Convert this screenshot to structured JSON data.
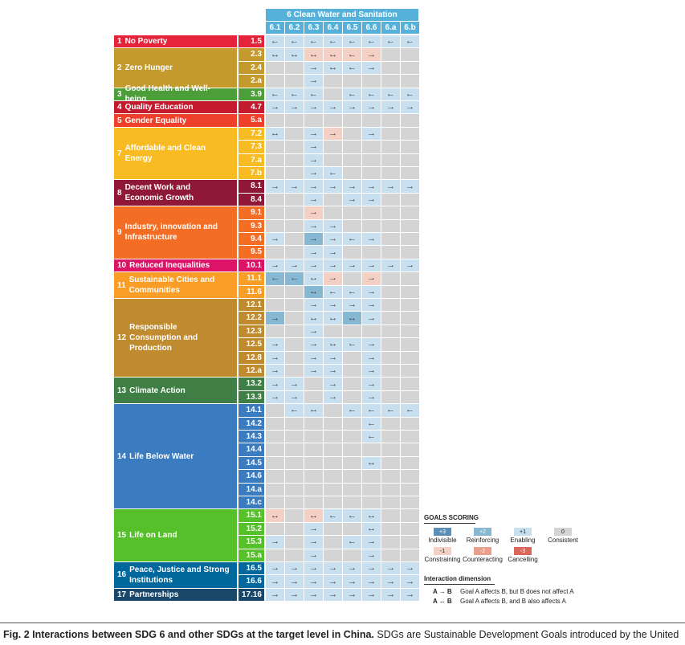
{
  "header": {
    "title": "6  Clean Water and Sanitation",
    "columns": [
      "6.1",
      "6.2",
      "6.3",
      "6.4",
      "6.5",
      "6.6",
      "6.a",
      "6.b"
    ]
  },
  "goals": [
    {
      "num": "1",
      "label": "No Poverty",
      "color": "#e5243b",
      "targets": [
        "1.5"
      ]
    },
    {
      "num": "2",
      "label": "Zero Hunger",
      "color": "#c49a2c",
      "targets": [
        "2.3",
        "2.4",
        "2.a"
      ]
    },
    {
      "num": "3",
      "label": "Good Health and Well-being",
      "color": "#4c9f38",
      "targets": [
        "3.9"
      ]
    },
    {
      "num": "4",
      "label": "Quality Education",
      "color": "#c5192d",
      "targets": [
        "4.7"
      ]
    },
    {
      "num": "5",
      "label": "Gender Equality",
      "color": "#ef402b",
      "targets": [
        "5.a"
      ]
    },
    {
      "num": "7",
      "label": "Affordable and Clean Energy",
      "color": "#f8bb22",
      "targets": [
        "7.2",
        "7.3",
        "7.a",
        "7.b"
      ]
    },
    {
      "num": "8",
      "label": "Decent Work and Economic Growth",
      "color": "#8f1838",
      "targets": [
        "8.1",
        "8.4"
      ]
    },
    {
      "num": "9",
      "label": "Industry, innovation and Infrastructure",
      "color": "#f36d25",
      "targets": [
        "9.1",
        "9.3",
        "9.4",
        "9.5"
      ]
    },
    {
      "num": "10",
      "label": "Reduced Inequalities",
      "color": "#dd1367",
      "targets": [
        "10.1"
      ]
    },
    {
      "num": "11",
      "label": "Sustainable Cities and Communities",
      "color": "#f99d26",
      "targets": [
        "11.1",
        "11.6"
      ]
    },
    {
      "num": "12",
      "label": "Responsible Consumption and Production",
      "color": "#bf8b2e",
      "targets": [
        "12.1",
        "12.2",
        "12.3",
        "12.5",
        "12.8",
        "12.a"
      ]
    },
    {
      "num": "13",
      "label": "Climate Action",
      "color": "#3f7e44",
      "targets": [
        "13.2",
        "13.3"
      ]
    },
    {
      "num": "14",
      "label": "Life Below Water",
      "color": "#3b7cc0",
      "targets": [
        "14.1",
        "14.2",
        "14.3",
        "14.4",
        "14.5",
        "14.6",
        "14.a",
        "14.c"
      ]
    },
    {
      "num": "15",
      "label": "Life on Land",
      "color": "#56c02b",
      "targets": [
        "15.1",
        "15.2",
        "15.3",
        "15.a"
      ]
    },
    {
      "num": "16",
      "label": "Peace, Justice and Strong Institutions",
      "color": "#00689d",
      "targets": [
        "16.5",
        "16.6"
      ]
    },
    {
      "num": "17",
      "label": "Partnerships",
      "color": "#19486a",
      "targets": [
        "17.16"
      ]
    }
  ],
  "matrix": {
    "1.5": [
      "<1",
      "<1",
      "<1",
      "<1",
      "<1",
      "<1",
      "<1",
      "<1"
    ],
    "2.3": [
      "b1",
      "b1",
      "b-1",
      "b-1",
      "<-1",
      ">-1",
      "0",
      "0"
    ],
    "2.4": [
      "0",
      "0",
      ">1",
      "b1",
      "<1",
      ">1",
      "0",
      "0"
    ],
    "2.a": [
      "0",
      "0",
      ">1",
      "0",
      "0",
      "0",
      "0",
      "0"
    ],
    "3.9": [
      "<1",
      "<1",
      "<1",
      "0",
      "<1",
      "<1",
      "<1",
      "<1"
    ],
    "4.7": [
      ">1",
      ">1",
      ">1",
      ">1",
      ">1",
      ">1",
      ">1",
      ">1"
    ],
    "5.a": [
      "0",
      "0",
      "0",
      "0",
      "0",
      "0",
      "0",
      "0"
    ],
    "7.2": [
      "b1",
      "0",
      ">1",
      ">-1",
      "0",
      ">1",
      "0",
      "0"
    ],
    "7.3": [
      "0",
      "0",
      ">1",
      "0",
      "0",
      "0",
      "0",
      "0"
    ],
    "7.a": [
      "0",
      "0",
      ">1",
      "0",
      "0",
      "0",
      "0",
      "0"
    ],
    "7.b": [
      "0",
      "0",
      ">1",
      "<1",
      "0",
      "0",
      "0",
      "0"
    ],
    "8.1": [
      ">1",
      ">1",
      ">1",
      ">1",
      ">1",
      ">1",
      ">1",
      ">1"
    ],
    "8.4": [
      "0",
      "0",
      ">1",
      "0",
      ">1",
      ">1",
      "0",
      "0"
    ],
    "9.1": [
      "0",
      "0",
      ">-1",
      "0",
      "0",
      "0",
      "0",
      "0"
    ],
    "9.3": [
      "0",
      "0",
      ">1",
      ">1",
      "0",
      "0",
      "0",
      "0"
    ],
    "9.4": [
      ">1",
      "0",
      ">2",
      ">1",
      "<1",
      ">1",
      "0",
      "0"
    ],
    "9.5": [
      "0",
      "0",
      ">1",
      ">1",
      "0",
      "0",
      "0",
      "0"
    ],
    "10.1": [
      ">1",
      ">1",
      ">1",
      ">1",
      ">1",
      ">1",
      ">1",
      ">1"
    ],
    "11.1": [
      "<2",
      "<2",
      "b1",
      ">-1",
      "0",
      ">-1",
      "0",
      "0"
    ],
    "11.6": [
      "0",
      "0",
      "b2",
      "<1",
      "<1",
      ">1",
      "0",
      "0"
    ],
    "12.1": [
      "0",
      "0",
      ">1",
      ">1",
      ">1",
      ">1",
      "0",
      "0"
    ],
    "12.2": [
      ">2",
      "0",
      "b1",
      "b1",
      "b2",
      ">1",
      "0",
      "0"
    ],
    "12.3": [
      "0",
      "0",
      ">1",
      "0",
      "0",
      "0",
      "0",
      "0"
    ],
    "12.5": [
      ">1",
      "0",
      ">1",
      "b1",
      "<1",
      ">1",
      "0",
      "0"
    ],
    "12.8": [
      ">1",
      "0",
      ">1",
      ">1",
      "0",
      ">1",
      "0",
      "0"
    ],
    "12.a": [
      ">1",
      "0",
      ">1",
      ">1",
      "0",
      ">1",
      "0",
      "0"
    ],
    "13.2": [
      ">1",
      ">1",
      "0",
      ">1",
      "0",
      ">1",
      "0",
      "0"
    ],
    "13.3": [
      ">1",
      ">1",
      "0",
      ">1",
      "0",
      ">1",
      "0",
      "0"
    ],
    "14.1": [
      "0",
      "<1",
      "b1",
      "0",
      "<1",
      "<1",
      "<1",
      "<1"
    ],
    "14.2": [
      "0",
      "0",
      "0",
      "0",
      "0",
      "<1",
      "0",
      "0"
    ],
    "14.3": [
      "0",
      "0",
      "0",
      "0",
      "0",
      "<1",
      "0",
      "0"
    ],
    "14.4": [
      "0",
      "0",
      "0",
      "0",
      "0",
      "0",
      "0",
      "0"
    ],
    "14.5": [
      "0",
      "0",
      "0",
      "0",
      "0",
      "b1",
      "0",
      "0"
    ],
    "14.6": [
      "0",
      "0",
      "0",
      "0",
      "0",
      "0",
      "0",
      "0"
    ],
    "14.a": [
      "0",
      "0",
      "0",
      "0",
      "0",
      "0",
      "0",
      "0"
    ],
    "14.c": [
      "0",
      "0",
      "0",
      "0",
      "0",
      "0",
      "0",
      "0"
    ],
    "15.1": [
      "b-1",
      "0",
      "b-1",
      "<1",
      "<1",
      "b1",
      "0",
      "0"
    ],
    "15.2": [
      "0",
      "0",
      ">1",
      "0",
      "0",
      "b1",
      "0",
      "0"
    ],
    "15.3": [
      ">1",
      "0",
      ">1",
      "0",
      "<1",
      ">1",
      "0",
      "0"
    ],
    "15.a": [
      "0",
      "0",
      ">1",
      "0",
      "0",
      ">1",
      "0",
      "0"
    ],
    "16.5": [
      ">1",
      ">1",
      ">1",
      ">1",
      ">1",
      ">1",
      ">1",
      ">1"
    ],
    "16.6": [
      ">1",
      ">1",
      ">1",
      ">1",
      ">1",
      ">1",
      ">1",
      ">1"
    ],
    "17.16": [
      ">1",
      ">1",
      ">1",
      ">1",
      ">1",
      ">1",
      ">1",
      ">1"
    ]
  },
  "colors": {
    "3": "#5b8fb5",
    "2": "#86b7d3",
    "1": "#c7dfee",
    "0": "#d4d4d4",
    "-1": "#f4cfc4",
    "-2": "#e99f8b",
    "-3": "#d9675a"
  },
  "legend": {
    "title": "GOALS SCORING",
    "scores": [
      {
        "value": "3",
        "badge": "+3",
        "label": "Indivisible"
      },
      {
        "value": "2",
        "badge": "+2",
        "label": "Reinforcing"
      },
      {
        "value": "1",
        "badge": "+1",
        "label": "Enabling"
      },
      {
        "value": "0",
        "badge": "0",
        "label": "Consistent"
      },
      {
        "value": "-1",
        "badge": "-1",
        "label": "Constraining"
      },
      {
        "value": "-2",
        "badge": "-2",
        "label": "Counteracting"
      },
      {
        "value": "-3",
        "badge": "-3",
        "label": "Cancelling"
      }
    ],
    "dimension_title": "Interaction dimension",
    "dimensions": [
      {
        "symbol": "A → B",
        "text": "Goal A affects B, but B does not affect A"
      },
      {
        "symbol": "A ↔ B",
        "text": "Goal A affects B, and B also affects A"
      }
    ]
  },
  "caption": {
    "bold": "Fig. 2 Interactions between SDG 6 and other SDGs at the target level in China.",
    "text": " SDGs are Sustainable Development Goals introduced by the United"
  }
}
